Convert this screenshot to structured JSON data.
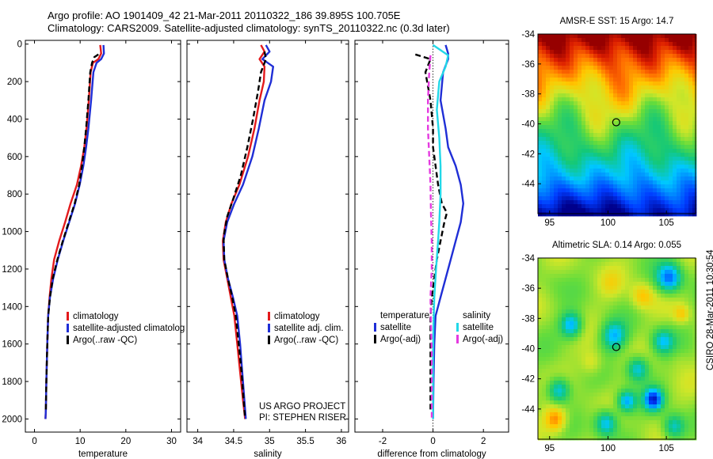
{
  "header": {
    "title_line1": "Argo profile: AO 1901409_42 21-Mar-2011 20110322_186 39.895S 100.705E",
    "title_line2": "Climatology: CARS2009. Satellite-adjusted climatology: synTS_20110322.nc (0.3d later)"
  },
  "colors": {
    "climatology": "#e31a1c",
    "satellite": "#1f2ed6",
    "argo": "#000000",
    "salinity_satellite": "#22d8e8",
    "salinity_argo": "#e53ae0"
  },
  "chart_data": [
    {
      "type": "line",
      "xlabel": "temperature",
      "xlim": [
        -2,
        32
      ],
      "ylim": [
        2070,
        -20
      ],
      "y_inverted": true,
      "xticks": [
        0,
        10,
        20,
        30
      ],
      "yticks": [
        0,
        200,
        400,
        600,
        800,
        1000,
        1200,
        1400,
        1600,
        1800,
        2000
      ],
      "grid": false,
      "legend": [
        "climatology",
        "satellite-adjusted climatolog",
        "Argo(..raw -QC)"
      ],
      "series": [
        {
          "name": "climatology",
          "color": "#e31a1c",
          "dash": false,
          "x": [
            14.4,
            14.6,
            14.0,
            12.8,
            12.3,
            11.9,
            11.4,
            10.9,
            10.2,
            9.3,
            7.9,
            6.7,
            5.4,
            4.3,
            3.7,
            3.3,
            3.0,
            2.8,
            2.6,
            2.5,
            2.4
          ],
          "y": [
            5,
            50,
            80,
            100,
            150,
            300,
            450,
            550,
            650,
            750,
            850,
            950,
            1050,
            1150,
            1250,
            1350,
            1450,
            1600,
            1800,
            1950,
            2000
          ]
        },
        {
          "name": "satellite-adjusted climatolog",
          "color": "#1f2ed6",
          "dash": false,
          "x": [
            15.1,
            15.2,
            14.6,
            13.6,
            12.9,
            12.4,
            11.8,
            11.3,
            10.7,
            9.9,
            8.9,
            7.6,
            6.3,
            5.1,
            4.1,
            3.4,
            3.0,
            2.8,
            2.6,
            2.5,
            2.4
          ],
          "y": [
            5,
            50,
            80,
            100,
            150,
            300,
            450,
            550,
            650,
            750,
            850,
            950,
            1050,
            1150,
            1250,
            1350,
            1450,
            1600,
            1800,
            1950,
            2000
          ]
        },
        {
          "name": "Argo(..raw -QC)",
          "color": "#000000",
          "dash": true,
          "x": [
            14.0,
            13.1,
            12.6,
            12.2,
            11.8,
            11.3,
            10.9,
            10.4,
            9.8,
            8.8,
            7.5,
            6.2,
            5.0,
            4.0,
            3.4,
            3.0,
            2.8,
            2.6,
            2.5
          ],
          "y": [
            55,
            70,
            100,
            150,
            300,
            450,
            550,
            650,
            750,
            850,
            950,
            1050,
            1150,
            1250,
            1350,
            1450,
            1600,
            1800,
            1950
          ]
        }
      ]
    },
    {
      "type": "line",
      "xlabel": "salinity",
      "xlim": [
        33.85,
        36.1
      ],
      "ylim": [
        2070,
        -20
      ],
      "y_inverted": true,
      "xticks": [
        34,
        34.5,
        35,
        35.5,
        36
      ],
      "grid": false,
      "legend": [
        "climatology",
        "satellite adj. clim.",
        "Argo(..raw -QC)"
      ],
      "annotation": [
        "US ARGO PROJECT",
        "PI: STEPHEN RISER"
      ],
      "series": [
        {
          "name": "climatology",
          "color": "#e31a1c",
          "dash": false,
          "x": [
            34.88,
            34.93,
            34.86,
            34.93,
            34.92,
            34.86,
            34.79,
            34.7,
            34.58,
            34.47,
            34.39,
            34.35,
            34.36,
            34.41,
            34.46,
            34.51,
            34.55,
            34.59,
            34.63,
            34.66
          ],
          "y": [
            5,
            40,
            80,
            120,
            200,
            300,
            450,
            600,
            750,
            850,
            950,
            1050,
            1150,
            1250,
            1350,
            1450,
            1600,
            1750,
            1900,
            2000
          ]
        },
        {
          "name": "satellite adj. clim.",
          "color": "#1f2ed6",
          "dash": false,
          "x": [
            34.95,
            35.0,
            34.9,
            35.05,
            35.02,
            34.93,
            34.85,
            34.76,
            34.63,
            34.51,
            34.41,
            34.36,
            34.37,
            34.42,
            34.49,
            34.55,
            34.59,
            34.62,
            34.65,
            34.67
          ],
          "y": [
            5,
            40,
            80,
            120,
            200,
            300,
            450,
            600,
            750,
            850,
            950,
            1050,
            1150,
            1250,
            1350,
            1450,
            1600,
            1750,
            1900,
            2000
          ]
        },
        {
          "name": "Argo(..raw -QC)",
          "color": "#000000",
          "dash": true,
          "x": [
            34.93,
            34.95,
            34.88,
            34.84,
            34.77,
            34.69,
            34.6,
            34.5,
            34.41,
            34.36,
            34.37,
            34.42,
            34.48,
            34.53,
            34.57,
            34.61,
            34.64,
            34.66
          ],
          "y": [
            40,
            80,
            150,
            250,
            400,
            550,
            700,
            820,
            920,
            1030,
            1150,
            1250,
            1350,
            1450,
            1600,
            1750,
            1900,
            2000
          ]
        }
      ]
    },
    {
      "type": "line",
      "xlabel": "difference from climatology",
      "xlim": [
        -3.1,
        3.0
      ],
      "ylim": [
        2070,
        -20
      ],
      "y_inverted": true,
      "xticks": [
        -2,
        0,
        2
      ],
      "grid": false,
      "legend_groups": [
        {
          "title": "temperature",
          "items": [
            "satellite",
            "Argo(-adj)"
          ]
        },
        {
          "title": "salinity",
          "items": [
            "satellite",
            "Argo(-adj)"
          ]
        }
      ],
      "series": [
        {
          "name": "satellite",
          "group": "temperature",
          "color": "#1f2ed6",
          "dash": false,
          "x": [
            0.5,
            0.6,
            0.6,
            0.4,
            0.3,
            0.5,
            0.6,
            0.9,
            1.1,
            1.2,
            1.1,
            0.9,
            0.7,
            0.5,
            0.3,
            0.1,
            0.05,
            0.02,
            0.0
          ],
          "y": [
            5,
            50,
            80,
            150,
            300,
            450,
            550,
            650,
            750,
            850,
            950,
            1050,
            1150,
            1250,
            1350,
            1450,
            1600,
            1800,
            2000
          ]
        },
        {
          "name": "Argo(-adj)",
          "group": "temperature",
          "color": "#000000",
          "dash": true,
          "x": [
            -0.7,
            -0.1,
            -0.3,
            -0.1,
            0.0,
            0.0,
            0.1,
            0.2,
            0.35,
            0.55,
            0.45,
            0.3,
            0.15,
            0.05,
            -0.05,
            -0.1,
            -0.1,
            -0.1
          ],
          "y": [
            55,
            80,
            150,
            300,
            450,
            550,
            650,
            750,
            850,
            900,
            950,
            1050,
            1150,
            1250,
            1350,
            1450,
            1600,
            1950
          ]
        },
        {
          "name": "satellite",
          "group": "salinity",
          "color": "#22d8e8",
          "dash": false,
          "x": [
            0.0,
            0.6,
            0.5,
            0.25,
            0.15,
            0.25,
            0.3,
            0.3,
            0.25,
            0.2,
            0.12,
            0.05,
            0.02,
            0.0,
            0.0,
            0.0
          ],
          "y": [
            5,
            60,
            120,
            200,
            350,
            500,
            650,
            800,
            950,
            1050,
            1200,
            1350,
            1500,
            1650,
            1800,
            2000
          ]
        },
        {
          "name": "Argo(-adj)",
          "group": "salinity",
          "color": "#e53ae0",
          "dash": true,
          "x": [
            -0.1,
            -0.15,
            -0.2,
            -0.2,
            -0.15,
            -0.1,
            -0.08,
            -0.05,
            -0.05,
            -0.1,
            -0.08,
            -0.05,
            -0.05,
            -0.05
          ],
          "y": [
            60,
            150,
            300,
            450,
            600,
            750,
            900,
            1050,
            1200,
            1350,
            1500,
            1650,
            1800,
            2000
          ]
        }
      ]
    },
    {
      "type": "heatmap",
      "title": "AMSR-E SST: 15 Argo: 14.7",
      "xlim": [
        94,
        107.5
      ],
      "ylim": [
        -46,
        -34
      ],
      "xticks": [
        95,
        100,
        105
      ],
      "yticks": [
        -34,
        -36,
        -38,
        -40,
        -42,
        -44
      ],
      "profile_marker": {
        "lon": 100.705,
        "lat": -39.895
      }
    },
    {
      "type": "heatmap",
      "title": "Altimetric SLA: 0.14 Argo: 0.055",
      "xlim": [
        94,
        107.5
      ],
      "ylim": [
        -46,
        -34
      ],
      "xticks": [
        95,
        100,
        105
      ],
      "yticks": [
        -34,
        -36,
        -38,
        -40,
        -42,
        -44
      ],
      "profile_marker": {
        "lon": 100.705,
        "lat": -39.895
      }
    }
  ],
  "footer": {
    "side_label": "CSIRO 28-Mar-2011 10:30:54"
  }
}
